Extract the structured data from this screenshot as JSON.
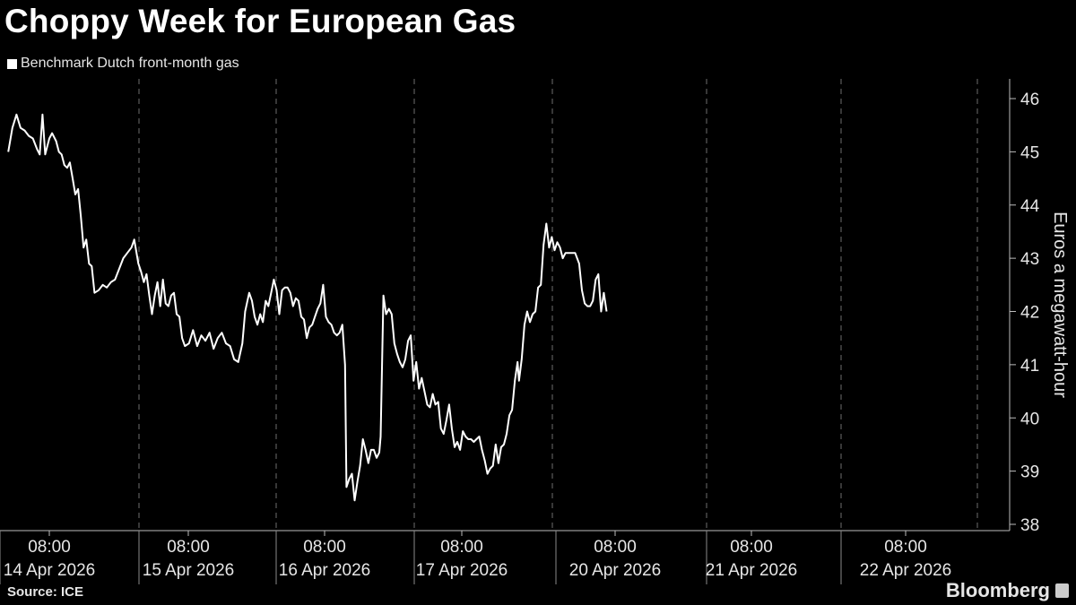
{
  "header": {
    "title": "Choppy Week for European Gas",
    "legend_label": "Benchmark Dutch front-month gas"
  },
  "footer": {
    "source": "Source: ICE",
    "brand": "Bloomberg"
  },
  "colors": {
    "background": "#000000",
    "line": "#ffffff",
    "grid": "#6e6e6e",
    "text": "#e6e6e6"
  },
  "chart_data": {
    "type": "line",
    "title": "Choppy Week for European Gas",
    "ylabel": "Euros a megawatt-hour",
    "xlabel": "",
    "ylim": [
      38,
      46.3
    ],
    "yticks": [
      38,
      39,
      40,
      41,
      42,
      43,
      44,
      45,
      46
    ],
    "axis_position": "right",
    "grid": "vertical dashed",
    "legend": "top-left",
    "x_ticks": [
      {
        "time": "08:00",
        "date": "14 Apr 2026"
      },
      {
        "time": "08:00",
        "date": "15 Apr 2026"
      },
      {
        "time": "08:00",
        "date": "16 Apr 2026"
      },
      {
        "time": "08:00",
        "date": "17 Apr 2026"
      },
      {
        "time": "08:00",
        "date": "20 Apr 2026"
      },
      {
        "time": "08:00",
        "date": "21 Apr 2026"
      },
      {
        "time": "08:00",
        "date": "22 Apr 2026"
      }
    ],
    "series": [
      {
        "name": "Benchmark Dutch front-month gas",
        "x_unit": "trading days since 14 Apr 2026 08:00",
        "points": [
          [
            -0.3,
            45.0
          ],
          [
            -0.27,
            45.45
          ],
          [
            -0.24,
            45.7
          ],
          [
            -0.21,
            45.45
          ],
          [
            -0.18,
            45.4
          ],
          [
            -0.15,
            45.3
          ],
          [
            -0.12,
            45.25
          ],
          [
            -0.09,
            45.05
          ],
          [
            -0.07,
            44.95
          ],
          [
            -0.05,
            45.7
          ],
          [
            -0.03,
            44.95
          ],
          [
            0.0,
            45.25
          ],
          [
            0.02,
            45.35
          ],
          [
            0.05,
            45.2
          ],
          [
            0.07,
            45.0
          ],
          [
            0.09,
            44.95
          ],
          [
            0.11,
            44.75
          ],
          [
            0.13,
            44.7
          ],
          [
            0.15,
            44.8
          ],
          [
            0.17,
            44.5
          ],
          [
            0.19,
            44.2
          ],
          [
            0.21,
            44.3
          ],
          [
            0.23,
            43.8
          ],
          [
            0.25,
            43.2
          ],
          [
            0.27,
            43.35
          ],
          [
            0.29,
            42.9
          ],
          [
            0.31,
            42.85
          ],
          [
            0.33,
            42.35
          ],
          [
            0.36,
            42.4
          ],
          [
            0.39,
            42.5
          ],
          [
            0.42,
            42.45
          ],
          [
            0.45,
            42.55
          ],
          [
            0.48,
            42.6
          ],
          [
            0.51,
            42.8
          ],
          [
            0.54,
            43.0
          ],
          [
            0.57,
            43.1
          ],
          [
            0.6,
            43.2
          ],
          [
            0.62,
            43.35
          ],
          [
            0.65,
            42.9
          ],
          [
            0.67,
            42.75
          ],
          [
            0.69,
            42.55
          ],
          [
            0.71,
            42.7
          ],
          [
            0.73,
            42.3
          ],
          [
            0.75,
            41.95
          ],
          [
            0.77,
            42.3
          ],
          [
            0.79,
            42.55
          ],
          [
            0.81,
            42.1
          ],
          [
            0.83,
            42.6
          ],
          [
            0.85,
            42.15
          ],
          [
            0.87,
            42.1
          ],
          [
            0.89,
            42.3
          ],
          [
            0.91,
            42.35
          ],
          [
            0.93,
            41.95
          ],
          [
            0.95,
            41.9
          ],
          [
            0.97,
            41.5
          ],
          [
            0.99,
            41.35
          ],
          [
            1.02,
            41.4
          ],
          [
            1.05,
            41.65
          ],
          [
            1.08,
            41.35
          ],
          [
            1.11,
            41.55
          ],
          [
            1.14,
            41.45
          ],
          [
            1.17,
            41.6
          ],
          [
            1.2,
            41.3
          ],
          [
            1.23,
            41.5
          ],
          [
            1.26,
            41.6
          ],
          [
            1.29,
            41.4
          ],
          [
            1.32,
            41.35
          ],
          [
            1.35,
            41.1
          ],
          [
            1.38,
            41.05
          ],
          [
            1.41,
            41.4
          ],
          [
            1.43,
            42.0
          ],
          [
            1.46,
            42.35
          ],
          [
            1.48,
            42.2
          ],
          [
            1.5,
            41.9
          ],
          [
            1.52,
            41.75
          ],
          [
            1.54,
            41.95
          ],
          [
            1.56,
            41.8
          ],
          [
            1.58,
            42.2
          ],
          [
            1.6,
            42.1
          ],
          [
            1.62,
            42.35
          ],
          [
            1.64,
            42.6
          ],
          [
            1.66,
            42.4
          ],
          [
            1.68,
            41.95
          ],
          [
            1.7,
            42.4
          ],
          [
            1.72,
            42.45
          ],
          [
            1.74,
            42.45
          ],
          [
            1.76,
            42.35
          ],
          [
            1.78,
            42.1
          ],
          [
            1.8,
            42.25
          ],
          [
            1.82,
            42.2
          ],
          [
            1.84,
            41.9
          ],
          [
            1.86,
            41.85
          ],
          [
            1.88,
            41.5
          ],
          [
            1.9,
            41.7
          ],
          [
            1.92,
            41.75
          ],
          [
            1.94,
            41.9
          ],
          [
            1.96,
            42.05
          ],
          [
            1.98,
            42.15
          ],
          [
            2.0,
            42.5
          ],
          [
            2.02,
            41.9
          ],
          [
            2.04,
            41.8
          ],
          [
            2.06,
            41.75
          ],
          [
            2.08,
            41.6
          ],
          [
            2.1,
            41.55
          ],
          [
            2.12,
            41.6
          ],
          [
            2.14,
            41.75
          ],
          [
            2.16,
            41.0
          ],
          [
            2.17,
            38.7
          ],
          [
            2.19,
            38.85
          ],
          [
            2.21,
            38.95
          ],
          [
            2.23,
            38.45
          ],
          [
            2.25,
            38.8
          ],
          [
            2.27,
            39.1
          ],
          [
            2.29,
            39.6
          ],
          [
            2.31,
            39.4
          ],
          [
            2.33,
            39.15
          ],
          [
            2.35,
            39.4
          ],
          [
            2.37,
            39.4
          ],
          [
            2.39,
            39.25
          ],
          [
            2.41,
            39.35
          ],
          [
            2.42,
            39.65
          ],
          [
            2.44,
            42.3
          ],
          [
            2.46,
            41.95
          ],
          [
            2.48,
            42.05
          ],
          [
            2.5,
            41.95
          ],
          [
            2.52,
            41.4
          ],
          [
            2.54,
            41.2
          ],
          [
            2.56,
            41.05
          ],
          [
            2.58,
            40.95
          ],
          [
            2.6,
            41.1
          ],
          [
            2.62,
            41.45
          ],
          [
            2.64,
            41.55
          ],
          [
            2.66,
            40.7
          ],
          [
            2.68,
            41.05
          ],
          [
            2.7,
            40.55
          ],
          [
            2.72,
            40.75
          ],
          [
            2.74,
            40.5
          ],
          [
            2.76,
            40.25
          ],
          [
            2.78,
            40.2
          ],
          [
            2.8,
            40.45
          ],
          [
            2.82,
            40.25
          ],
          [
            2.84,
            40.3
          ],
          [
            2.86,
            39.8
          ],
          [
            2.88,
            39.7
          ],
          [
            2.9,
            39.95
          ],
          [
            2.92,
            40.25
          ],
          [
            2.94,
            39.8
          ],
          [
            2.96,
            39.45
          ],
          [
            2.98,
            39.55
          ],
          [
            3.0,
            39.4
          ],
          [
            3.02,
            39.75
          ],
          [
            3.04,
            39.65
          ],
          [
            3.06,
            39.6
          ],
          [
            3.08,
            39.6
          ],
          [
            3.1,
            39.55
          ],
          [
            3.12,
            39.6
          ],
          [
            3.14,
            39.65
          ],
          [
            3.16,
            39.4
          ],
          [
            3.18,
            39.2
          ],
          [
            3.2,
            38.95
          ],
          [
            3.22,
            39.05
          ],
          [
            3.24,
            39.1
          ],
          [
            3.26,
            39.5
          ],
          [
            3.28,
            39.15
          ],
          [
            3.3,
            39.45
          ],
          [
            3.32,
            39.5
          ],
          [
            3.34,
            39.7
          ],
          [
            3.36,
            40.05
          ],
          [
            3.38,
            40.15
          ],
          [
            3.4,
            40.7
          ],
          [
            3.42,
            41.05
          ],
          [
            3.43,
            40.7
          ],
          [
            3.45,
            41.1
          ],
          [
            3.47,
            41.75
          ],
          [
            3.49,
            42.0
          ],
          [
            3.51,
            41.8
          ],
          [
            3.53,
            41.95
          ],
          [
            3.55,
            42.0
          ],
          [
            3.57,
            42.45
          ],
          [
            3.59,
            42.5
          ],
          [
            3.61,
            43.25
          ],
          [
            3.63,
            43.65
          ],
          [
            3.65,
            43.2
          ],
          [
            3.67,
            43.4
          ],
          [
            3.69,
            43.15
          ],
          [
            3.71,
            43.3
          ],
          [
            3.73,
            43.2
          ],
          [
            3.75,
            43.0
          ],
          [
            3.77,
            43.1
          ],
          [
            3.8,
            43.1
          ],
          [
            3.84,
            43.1
          ],
          [
            3.87,
            42.9
          ],
          [
            3.89,
            42.4
          ],
          [
            3.91,
            42.15
          ],
          [
            3.93,
            42.1
          ],
          [
            3.95,
            42.1
          ],
          [
            3.97,
            42.2
          ],
          [
            3.99,
            42.6
          ],
          [
            4.01,
            42.7
          ],
          [
            4.03,
            42.0
          ],
          [
            4.05,
            42.35
          ],
          [
            4.07,
            42.0
          ]
        ]
      }
    ]
  }
}
